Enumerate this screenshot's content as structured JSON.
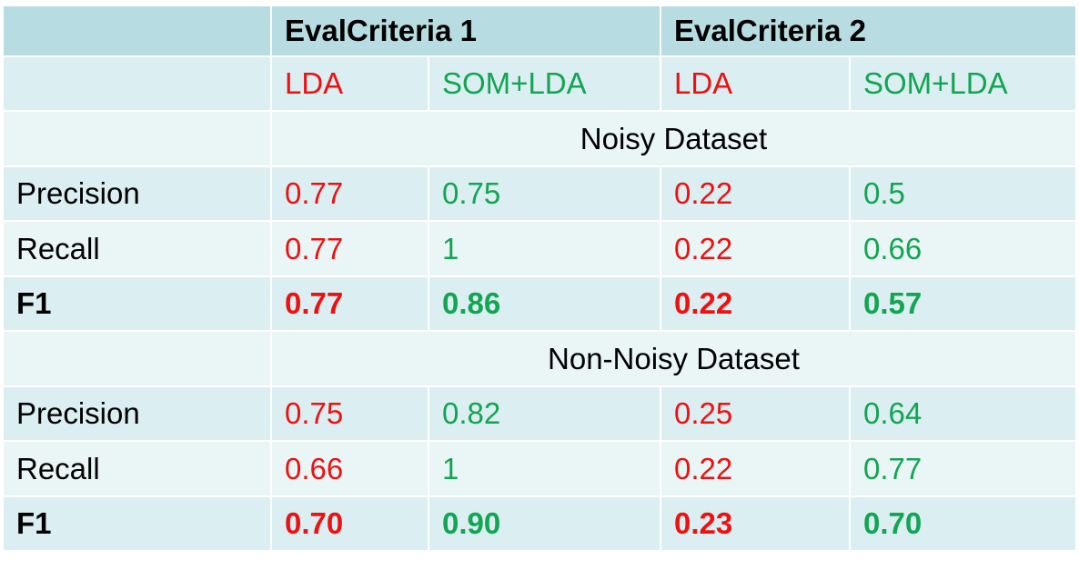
{
  "chart_data": {
    "type": "table",
    "criteria": [
      "EvalCriteria 1",
      "EvalCriteria 2"
    ],
    "methods": [
      "LDA",
      "SOM+LDA",
      "LDA",
      "SOM+LDA"
    ],
    "sections": [
      {
        "title": "Noisy Dataset",
        "rows": [
          {
            "metric": "Precision",
            "values": [
              "0.77",
              "0.75",
              "0.22",
              "0.5"
            ]
          },
          {
            "metric": "Recall",
            "values": [
              "0.77",
              "1",
              "0.22",
              "0.66"
            ]
          },
          {
            "metric": "F1",
            "values": [
              "0.77",
              "0.86",
              "0.22",
              "0.57"
            ]
          }
        ]
      },
      {
        "title": "Non-Noisy Dataset",
        "rows": [
          {
            "metric": "Precision",
            "values": [
              "0.75",
              "0.82",
              "0.25",
              "0.64"
            ]
          },
          {
            "metric": "Recall",
            "values": [
              "0.66",
              "1",
              "0.22",
              "0.77"
            ]
          },
          {
            "metric": "F1",
            "values": [
              "0.70",
              "0.90",
              "0.23",
              "0.70"
            ]
          }
        ]
      }
    ],
    "colors": {
      "lda": "#ee1111",
      "som_lda": "#12a552",
      "header_bg": "#b7dde2",
      "band_bg": "#dbeef1",
      "alt_bg": "#eaf5f6"
    }
  }
}
